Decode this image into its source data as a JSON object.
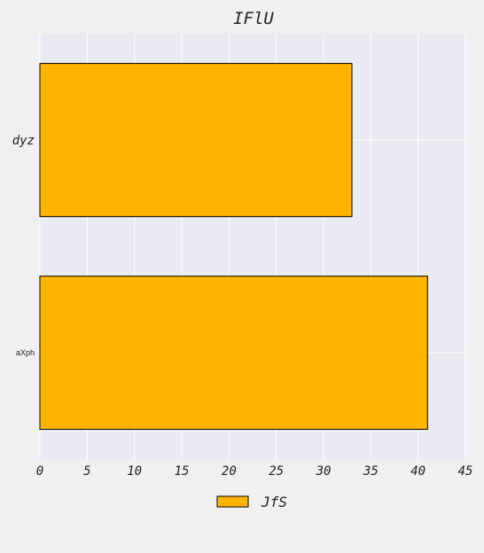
{
  "chart_data": {
    "type": "bar",
    "orientation": "horizontal",
    "title": "IFlU",
    "categories": [
      "dyz",
      "aXph"
    ],
    "series": [
      {
        "name": "JfS",
        "values": [
          33,
          41
        ],
        "color": "#ffb400"
      }
    ],
    "xlabel": "",
    "ylabel": "",
    "xlim": [
      0,
      45
    ],
    "xticks": [
      0,
      5,
      10,
      15,
      20,
      25,
      30,
      35,
      40,
      45
    ],
    "grid": true,
    "legend": "bottom-center",
    "colors": {
      "plot_bg": "#eaeaf2",
      "page_bg": "#f0f0f0",
      "grid": "#ffffff",
      "bar_edge": "#000000"
    }
  }
}
